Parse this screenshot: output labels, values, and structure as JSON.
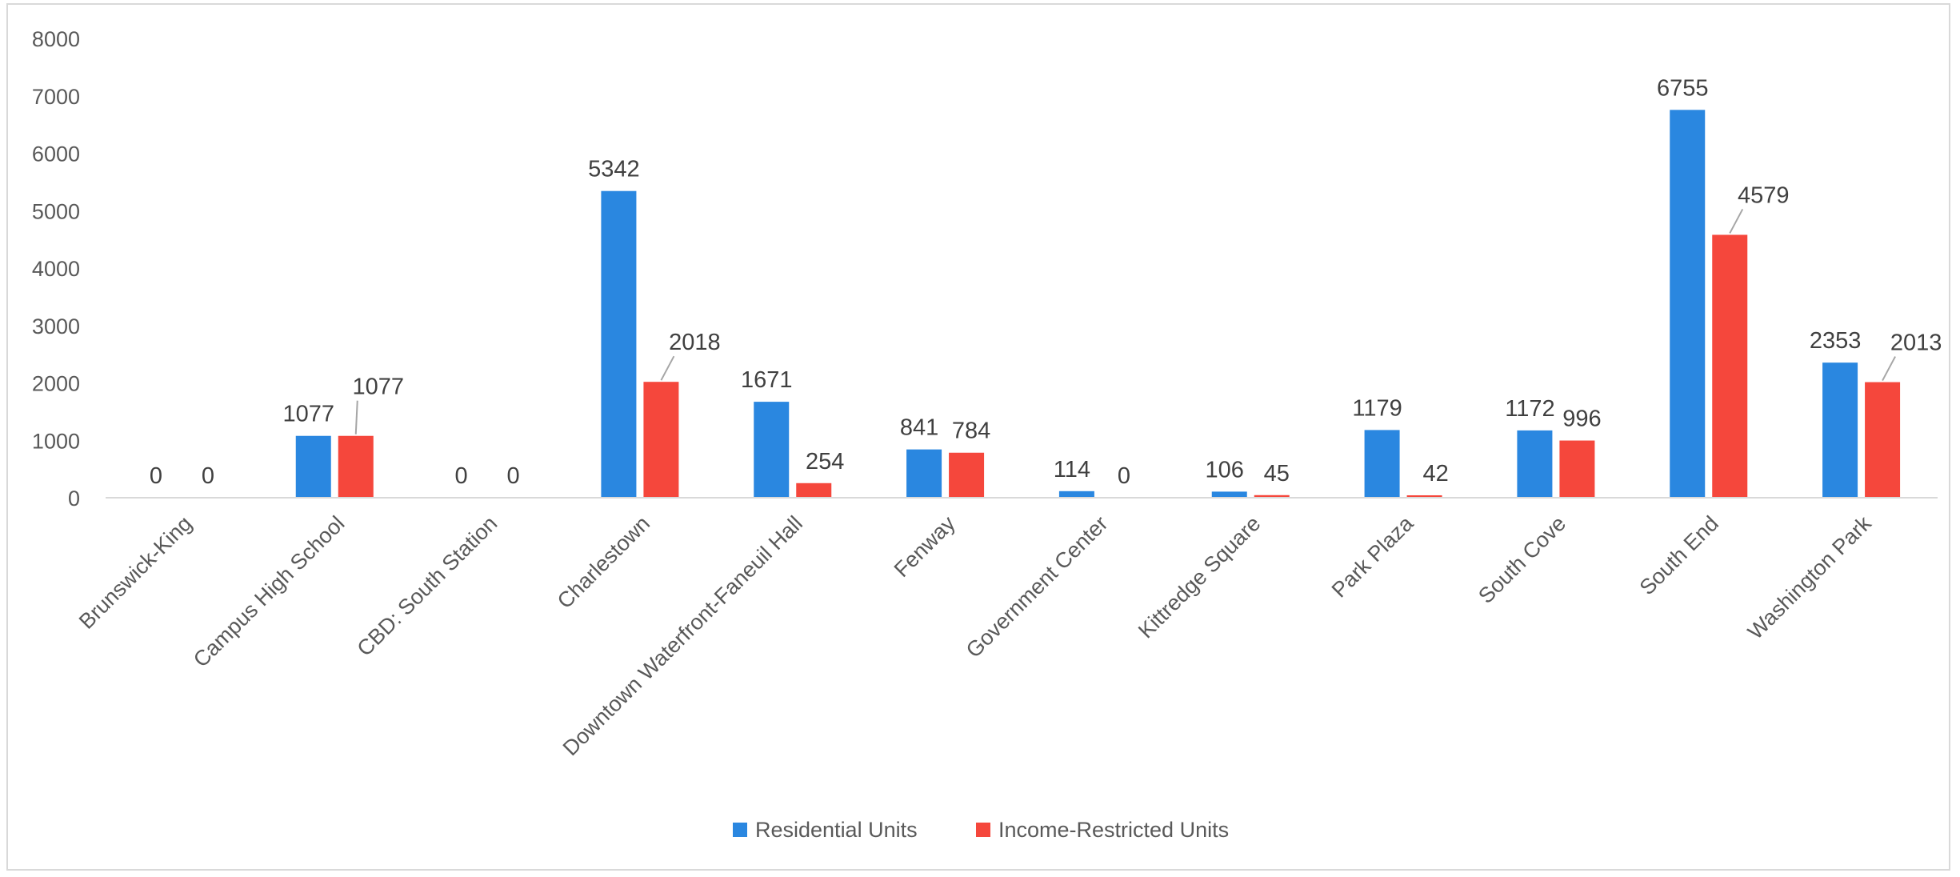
{
  "chart_data": {
    "type": "bar",
    "title": "",
    "xlabel": "",
    "ylabel": "",
    "ylim": [
      0,
      8000
    ],
    "yticks": [
      0,
      1000,
      2000,
      3000,
      4000,
      5000,
      6000,
      7000,
      8000
    ],
    "grid": false,
    "legend_position": "bottom",
    "categories": [
      "Brunswick-King",
      "Campus High School",
      "CBD: South Station",
      "Charlestown",
      "Downtown Waterfront-Faneuil Hall",
      "Fenway",
      "Government Center",
      "Kittredge Square",
      "Park Plaza",
      "South Cove",
      "South End",
      "Washington Park"
    ],
    "series": [
      {
        "name": "Residential Units",
        "color": "#2a87e0",
        "values": [
          0,
          1077,
          0,
          5342,
          1671,
          841,
          114,
          106,
          1179,
          1172,
          6755,
          2353
        ]
      },
      {
        "name": "Income-Restricted Units",
        "color": "#f5473c",
        "values": [
          0,
          1077,
          0,
          2018,
          254,
          784,
          0,
          45,
          42,
          996,
          4579,
          2013
        ]
      }
    ]
  }
}
